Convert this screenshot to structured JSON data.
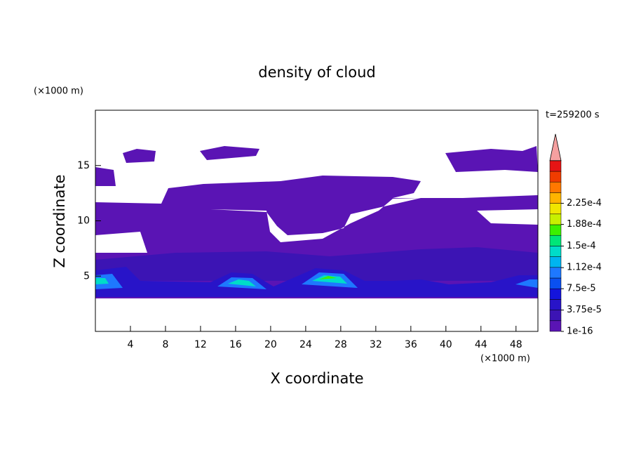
{
  "chart_data": {
    "type": "contour",
    "title": "density of cloud",
    "subtitle": "t=259200 s",
    "xlabel": "X coordinate",
    "ylabel": "Z coordinate",
    "xunit": "(×1000 m)",
    "yunit": "(×1000 m)",
    "xlim": [
      0,
      50.5
    ],
    "xticks": [
      4,
      8,
      12,
      16,
      20,
      24,
      28,
      32,
      36,
      40,
      44,
      48
    ],
    "ylim": [
      0,
      20
    ],
    "yticks": [
      5,
      10,
      15
    ],
    "colorbar": {
      "levels": [
        {
          "value": 1e-16,
          "label": "1e-16"
        },
        {
          "value": 3.75e-05,
          "label": "3.75e-5"
        },
        {
          "value": 7.5e-05,
          "label": "7.5e-5"
        },
        {
          "value": 0.000112,
          "label": "1.12e-4"
        },
        {
          "value": 0.00015,
          "label": "1.5e-4"
        },
        {
          "value": 0.000188,
          "label": "1.88e-4"
        },
        {
          "value": 0.000225,
          "label": "2.25e-4"
        }
      ],
      "colors": [
        "#5a14b4",
        "#3c14b4",
        "#2814c8",
        "#1414dc",
        "#0a50f0",
        "#1e78ff",
        "#00b4f0",
        "#00dcc8",
        "#00e678",
        "#3cf000",
        "#c8f000",
        "#f0e600",
        "#ffb400",
        "#ff7800",
        "#f03c00",
        "#e61414"
      ],
      "extend_color": "#f5a0a0"
    }
  }
}
